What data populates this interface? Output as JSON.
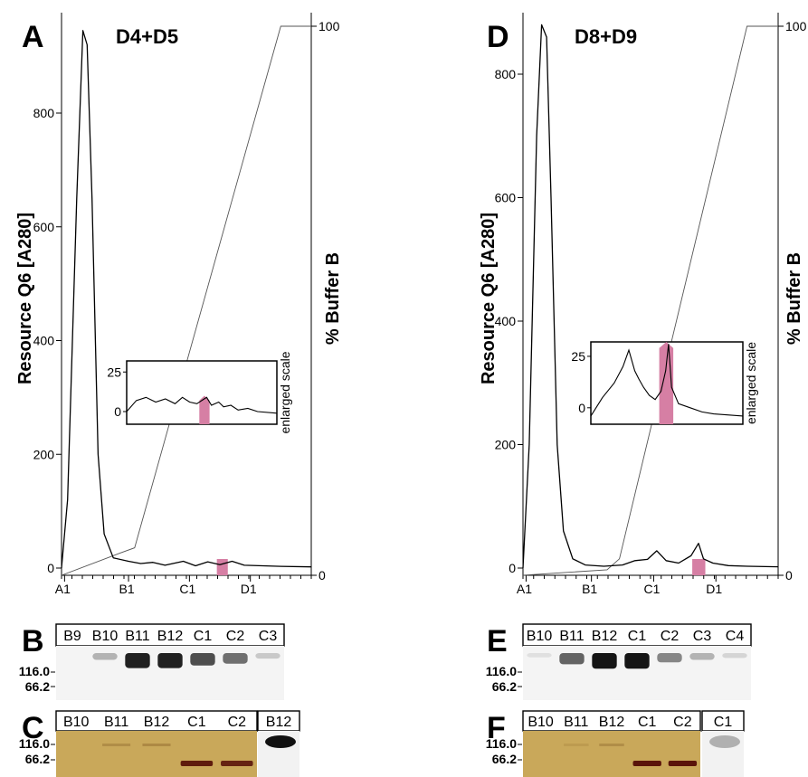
{
  "chart_data": [
    {
      "type": "line",
      "panel": "A",
      "title": "D4+D5",
      "ylabel_left": "Resource Q6 [A280]",
      "ylabel_right": "% Buffer B",
      "y_ticks": [
        "0",
        "200",
        "400",
        "600",
        "800"
      ],
      "y2_ticks": [
        "0",
        "100"
      ],
      "x_ticks": [
        "A1",
        "B1",
        "C1",
        "D1"
      ],
      "ylim": [
        0,
        950
      ],
      "y2lim": [
        0,
        100
      ],
      "xlim": [
        0,
        4.1
      ],
      "series": [
        {
          "role": "absorbance",
          "x": [
            0,
            0.1,
            0.25,
            0.35,
            0.42,
            0.5,
            0.6,
            0.7,
            0.85,
            1.1,
            1.3,
            1.5,
            1.7,
            2.0,
            2.2,
            2.4,
            2.6,
            2.8,
            3.0,
            3.3,
            3.6,
            4.1
          ],
          "y": [
            0,
            120,
            650,
            945,
            920,
            650,
            200,
            60,
            18,
            12,
            8,
            10,
            5,
            12,
            4,
            11,
            6,
            12,
            5,
            4,
            3,
            2
          ]
        },
        {
          "role": "gradient",
          "x": [
            0,
            0.95,
            1.2,
            3.6,
            4.1
          ],
          "y": [
            0,
            4,
            5,
            100,
            100
          ]
        }
      ],
      "highlight": {
        "label": "C1",
        "x_range": [
          2.55,
          2.73
        ]
      },
      "inset": {
        "label": "enlarged scale",
        "y_ticks": [
          "0",
          "25"
        ],
        "ylim": [
          -8,
          32
        ],
        "x": [
          1.0,
          1.2,
          1.4,
          1.6,
          1.8,
          2.0,
          2.15,
          2.3,
          2.45,
          2.6,
          2.65,
          2.75,
          2.9,
          3.0,
          3.15,
          3.3,
          3.5,
          3.7,
          4.1
        ],
        "y": [
          0,
          7,
          9,
          6,
          8,
          5,
          9,
          6,
          5,
          8,
          9,
          4,
          6,
          3,
          4,
          1,
          2,
          0,
          -1
        ]
      },
      "gel_panel": "B",
      "gel_lanes": [
        "B9",
        "B10",
        "B11",
        "B12",
        "C1",
        "C2",
        "C3"
      ],
      "gel_intensities": [
        0.0,
        0.25,
        0.9,
        0.9,
        0.7,
        0.55,
        0.15
      ],
      "stain_panel": "C",
      "stain_lanes": [
        "B10",
        "B11",
        "B12",
        "C1",
        "C2"
      ],
      "stain_band_66_intensities": [
        0.0,
        0.0,
        0.0,
        0.95,
        0.9
      ],
      "stain_band_116_intensities": [
        0.0,
        0.3,
        0.35,
        0.0,
        0.0
      ],
      "blot_lane": "B12",
      "mw_markers": [
        "116.0",
        "66.2"
      ]
    },
    {
      "type": "line",
      "panel": "D",
      "title": "D8+D9",
      "ylabel_left": "Resource Q6 [A280]",
      "ylabel_right": "% Buffer B",
      "y_ticks": [
        "0",
        "200",
        "400",
        "600",
        "800"
      ],
      "y2_ticks": [
        "0",
        "100"
      ],
      "x_ticks": [
        "A1",
        "B1",
        "C1",
        "D1"
      ],
      "ylim": [
        0,
        950
      ],
      "y2lim": [
        0,
        100
      ],
      "xlim": [
        0,
        4.1
      ],
      "series": [
        {
          "role": "absorbance",
          "x": [
            0,
            0.1,
            0.22,
            0.3,
            0.38,
            0.45,
            0.55,
            0.65,
            0.8,
            1.0,
            1.3,
            1.6,
            1.8,
            2.0,
            2.15,
            2.3,
            2.5,
            2.7,
            2.82,
            2.9,
            3.05,
            3.3,
            3.6,
            4.1
          ],
          "y": [
            0,
            200,
            700,
            880,
            860,
            600,
            200,
            60,
            15,
            5,
            3,
            5,
            12,
            14,
            28,
            12,
            8,
            20,
            40,
            15,
            8,
            4,
            3,
            2
          ]
        },
        {
          "role": "gradient",
          "x": [
            0,
            1.35,
            1.55,
            3.6,
            4.1
          ],
          "y": [
            0,
            1,
            3,
            100,
            100
          ]
        }
      ],
      "highlight": {
        "label": "C1",
        "x_range": [
          2.72,
          2.93
        ]
      },
      "inset": {
        "label": "enlarged scale",
        "y_ticks": [
          "0",
          "25"
        ],
        "ylim": [
          -8,
          32
        ],
        "x": [
          1.5,
          1.7,
          1.9,
          2.05,
          2.15,
          2.25,
          2.32,
          2.4,
          2.5,
          2.6,
          2.7,
          2.78,
          2.83,
          2.88,
          3.0,
          3.2,
          3.4,
          3.6,
          4.1
        ],
        "y": [
          -4,
          5,
          12,
          20,
          28,
          18,
          14,
          10,
          6,
          4,
          8,
          18,
          31,
          10,
          2,
          0,
          -2,
          -3,
          -4
        ]
      },
      "gel_panel": "E",
      "gel_lanes": [
        "B10",
        "B11",
        "B12",
        "C1",
        "C2",
        "C3",
        "C4"
      ],
      "gel_intensities": [
        0.05,
        0.6,
        0.95,
        0.95,
        0.45,
        0.25,
        0.1
      ],
      "stain_panel": "F",
      "stain_lanes": [
        "B10",
        "B11",
        "B12",
        "C1",
        "C2"
      ],
      "stain_band_66_intensities": [
        0.0,
        0.0,
        0.0,
        1.0,
        1.0
      ],
      "stain_band_116_intensities": [
        0.0,
        0.15,
        0.3,
        0.0,
        0.0
      ],
      "blot_lane": "C1",
      "mw_markers": [
        "116.0",
        "66.2"
      ]
    }
  ]
}
